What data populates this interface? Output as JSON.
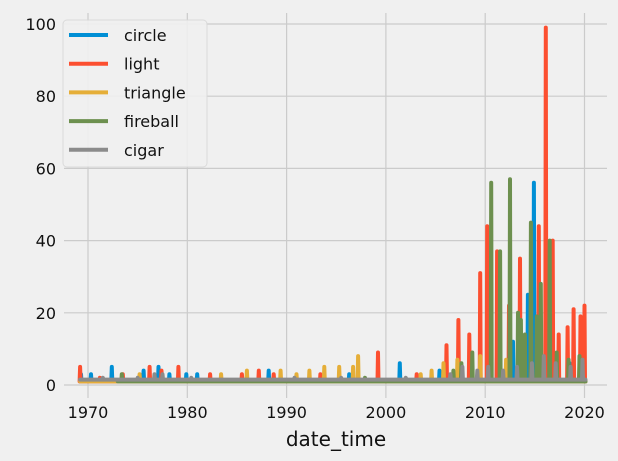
{
  "chart_data": {
    "type": "line",
    "title": "",
    "xlabel": "date_time",
    "ylabel": "",
    "xlim": [
      1967.6,
      2022.3
    ],
    "ylim": [
      -3,
      103
    ],
    "xticks": [
      1970,
      1980,
      1990,
      2000,
      2010,
      2020
    ],
    "yticks": [
      0,
      20,
      40,
      60,
      80,
      100
    ],
    "grid": true,
    "legend_position": "upper left",
    "series": [
      {
        "name": "circle",
        "color": "#008fd5",
        "peaks": [
          [
            1969.3,
            3
          ],
          [
            1970.3,
            3
          ],
          [
            1972.4,
            5
          ],
          [
            1975.6,
            4
          ],
          [
            1977.1,
            5
          ],
          [
            1978.2,
            3
          ],
          [
            1979.9,
            3
          ],
          [
            1981,
            3
          ],
          [
            1988.2,
            4
          ],
          [
            1996.3,
            3
          ],
          [
            2001.4,
            6
          ],
          [
            2005.4,
            4
          ],
          [
            2008.5,
            6
          ],
          [
            2011.2,
            10
          ],
          [
            2012.8,
            12
          ],
          [
            2014.3,
            25
          ],
          [
            2014.9,
            56
          ],
          [
            2016.1,
            10
          ],
          [
            2017.3,
            8
          ],
          [
            2018.5,
            6
          ]
        ]
      },
      {
        "name": "light",
        "color": "#fc4f30",
        "peaks": [
          [
            1969.2,
            5
          ],
          [
            1971.2,
            2
          ],
          [
            1973.5,
            3
          ],
          [
            1976.2,
            5
          ],
          [
            1977.4,
            4
          ],
          [
            1979.1,
            5
          ],
          [
            1982.3,
            3
          ],
          [
            1985.5,
            3
          ],
          [
            1987.2,
            4
          ],
          [
            1988.7,
            3
          ],
          [
            1993.4,
            3
          ],
          [
            1999.2,
            9
          ],
          [
            2003.1,
            3
          ],
          [
            2006.1,
            11
          ],
          [
            2007.3,
            18
          ],
          [
            2008.4,
            14
          ],
          [
            2009.5,
            31
          ],
          [
            2010.2,
            44
          ],
          [
            2011.2,
            37
          ],
          [
            2012.4,
            22
          ],
          [
            2013.5,
            35
          ],
          [
            2014.6,
            21
          ],
          [
            2015.4,
            44
          ],
          [
            2016.1,
            99
          ],
          [
            2016.8,
            40
          ],
          [
            2017.4,
            14
          ],
          [
            2018.3,
            16
          ],
          [
            2018.9,
            21
          ],
          [
            2019.6,
            19
          ],
          [
            2020.0,
            22
          ]
        ]
      },
      {
        "name": "triangle",
        "color": "#e5ae38",
        "peaks": [
          [
            1975.2,
            3
          ],
          [
            1983.4,
            3
          ],
          [
            1986,
            4
          ],
          [
            1989.4,
            4
          ],
          [
            1991,
            3
          ],
          [
            1992.3,
            4
          ],
          [
            1993.8,
            5
          ],
          [
            1995.3,
            5
          ],
          [
            1996.7,
            5
          ],
          [
            1997.2,
            8
          ],
          [
            2003.5,
            3
          ],
          [
            2004.6,
            4
          ],
          [
            2005.8,
            6
          ],
          [
            2007.2,
            7
          ],
          [
            2009.5,
            8
          ],
          [
            2012.1,
            7
          ],
          [
            2015.8,
            6
          ],
          [
            2019.5,
            5
          ]
        ]
      },
      {
        "name": "fireball",
        "color": "#6d904f",
        "peaks": [
          [
            1973.4,
            3
          ],
          [
            1997.9,
            2
          ],
          [
            2006.8,
            4
          ],
          [
            2007.6,
            6
          ],
          [
            2008.7,
            9
          ],
          [
            2010.6,
            56
          ],
          [
            2011.5,
            37
          ],
          [
            2012.5,
            57
          ],
          [
            2013.3,
            20
          ],
          [
            2013.6,
            18
          ],
          [
            2014,
            14
          ],
          [
            2014.6,
            45
          ],
          [
            2015.2,
            19
          ],
          [
            2015.6,
            28
          ],
          [
            2016.5,
            40
          ],
          [
            2017.2,
            9
          ],
          [
            2018.4,
            7
          ],
          [
            2019.5,
            8
          ]
        ]
      },
      {
        "name": "cigar",
        "color": "#8b8b8b",
        "peaks": [
          [
            1971.5,
            2
          ],
          [
            1975,
            2
          ],
          [
            1976.7,
            3
          ],
          [
            1977.5,
            3
          ],
          [
            1980.4,
            2
          ],
          [
            1990.8,
            2
          ],
          [
            1995.5,
            2
          ],
          [
            2002,
            2
          ],
          [
            2006.5,
            3
          ],
          [
            2007.7,
            5
          ],
          [
            2009.2,
            4
          ],
          [
            2010.3,
            5
          ],
          [
            2011.8,
            4
          ],
          [
            2013.2,
            5
          ],
          [
            2014.7,
            6
          ],
          [
            2015.9,
            8
          ],
          [
            2017.1,
            6
          ],
          [
            2018.6,
            5
          ],
          [
            2019.8,
            7
          ]
        ]
      }
    ]
  }
}
